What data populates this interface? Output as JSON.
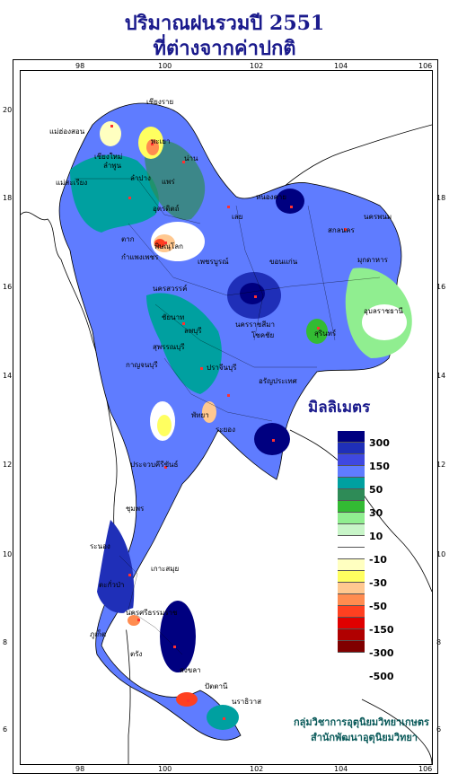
{
  "title_line1": "ปริมาณฝนรวมปี 2551",
  "title_line2": "ที่ต่างจากค่าปกติ",
  "axis": {
    "lon_ticks": [
      "98",
      "100",
      "102",
      "104",
      "106"
    ],
    "lat_ticks": [
      "20",
      "18",
      "16",
      "14",
      "12",
      "10",
      "8",
      "6"
    ]
  },
  "legend": {
    "title": "มิลลิเมตร",
    "labels": [
      "300",
      "150",
      "50",
      "30",
      "10",
      "-10",
      "-30",
      "-50",
      "-150",
      "-300",
      "-500"
    ],
    "colors": [
      "#000080",
      "#1f2fb8",
      "#3f48e0",
      "#5f7cff",
      "#00a0a0",
      "#2e8b57",
      "#33bb33",
      "#90ee90",
      "#c8f5c8",
      "#ffffff",
      "#ffffff",
      "#ffffc0",
      "#ffff60",
      "#ffc890",
      "#ff8c50",
      "#ff4020",
      "#e00000",
      "#b00000",
      "#800000"
    ]
  },
  "credit": {
    "line1": "กลุ่มวิชาการอุตุนิยมวิทยาเกษตร",
    "line2": "สำนักพัฒนาอุตุนิยมวิทยา"
  },
  "places": [
    "เชียงราย",
    "แม่ฮ่องสอน",
    "พะเยา",
    "เชียงใหม่",
    "ลำพูน",
    "น่าน",
    "แม่สะเรียง",
    "ลำปาง",
    "แพร่",
    "อุตรดิตถ์",
    "หนองคาย",
    "นครพนม",
    "เลย",
    "สกลนคร",
    "ตาก",
    "พิษณุโลก",
    "มุกดาหาร",
    "กำแพงเพชร",
    "เพชรบูรณ์",
    "ขอนแก่น",
    "นครสวรรค์",
    "อุบลราชธานี",
    "ชัยนาท",
    "ลพบุรี",
    "นครราชสีมา",
    "สุพรรณบุรี",
    "สุรินทร์",
    "โชคชัย",
    "กาญจนบุรี",
    "ปราจีนบุรี",
    "อรัญประเทศ",
    "พัทยา",
    "ระยอง",
    "ประจวบคีรีขันธ์",
    "ชุมพร",
    "ระนอง",
    "เกาะสมุย",
    "ตะกั่วป่า",
    "นครศรีธรรมราช",
    "ภูเก็ต",
    "ตรัง",
    "สงขลา",
    "ปัตตานี",
    "นราธิวาส"
  ]
}
